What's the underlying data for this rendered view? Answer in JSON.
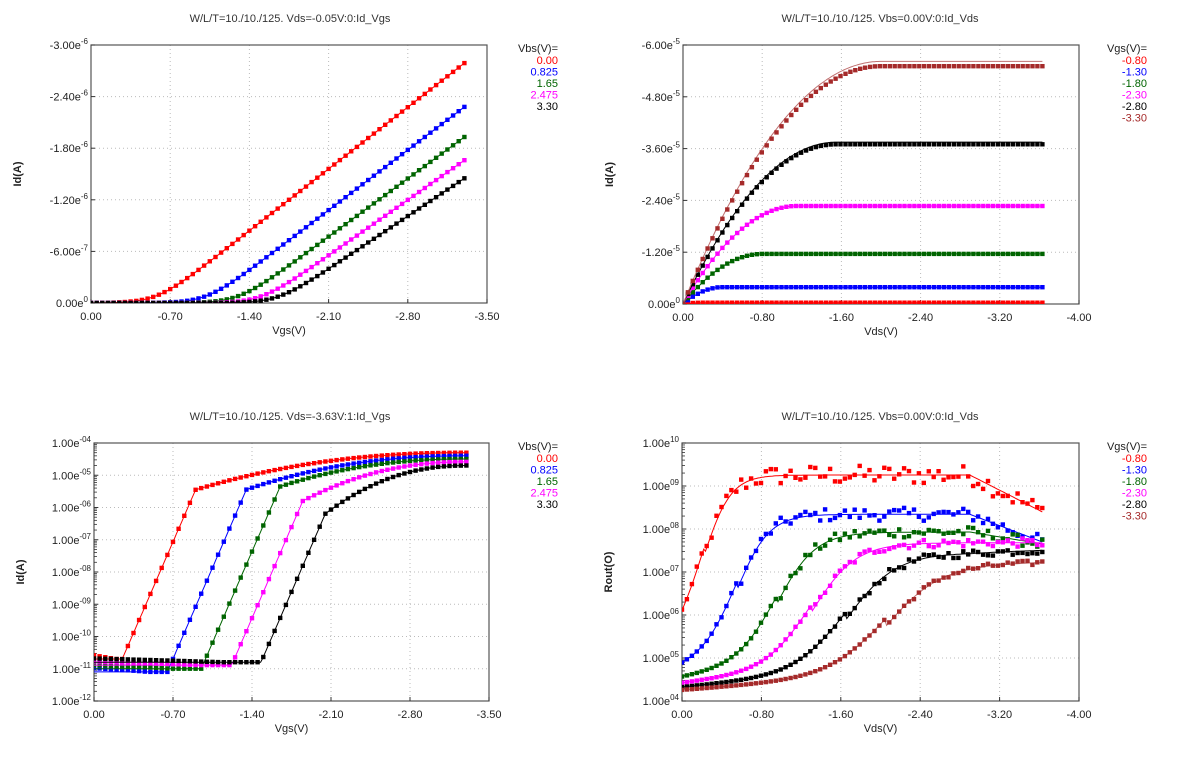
{
  "chart_data": [
    {
      "id": "tl",
      "type": "scatter",
      "title": "W/L/T=10./10./125.  Vds=-0.05V:0:Id_Vgs",
      "xlabel": "Vgs(V)",
      "ylabel": "Id(A)",
      "xlim": [
        0,
        -3.5
      ],
      "ylim": [
        0,
        -3e-06
      ],
      "yscale": "linear",
      "xticks": [
        0,
        -0.7,
        -1.4,
        -2.1,
        -2.8,
        -3.5
      ],
      "xtick_labels": [
        "0.00",
        "-0.70",
        "-1.40",
        "-2.10",
        "-2.80",
        "-3.50"
      ],
      "yticks": [
        0,
        -6e-07,
        -1.2e-06,
        -1.8e-06,
        -2.4e-06,
        -3e-06
      ],
      "ytick_labels": [
        [
          "0.00e",
          "0"
        ],
        [
          "-6.00e",
          "-7"
        ],
        [
          "-1.20e",
          "-6"
        ],
        [
          "-1.80e",
          "-6"
        ],
        [
          "-2.40e",
          "-6"
        ],
        [
          "-3.00e",
          "-6"
        ]
      ],
      "grid": true,
      "legend_title": "Vbs(V)=",
      "legend_position": "right",
      "model": "vgs_linear",
      "x_range": [
        0,
        -3.3
      ],
      "npts": 67,
      "series": [
        {
          "name": "0.00",
          "color": "#ff0000",
          "vth": -0.58,
          "end": -2.79e-06
        },
        {
          "name": "0.825",
          "color": "#0000ff",
          "vth": -1.02,
          "end": -2.28e-06
        },
        {
          "name": "1.65",
          "color": "#006400",
          "vth": -1.3,
          "end": -1.93e-06
        },
        {
          "name": "2.475",
          "color": "#ff00ff",
          "vth": -1.5,
          "end": -1.66e-06
        },
        {
          "name": "3.30",
          "color": "#000000",
          "vth": -1.65,
          "end": -1.45e-06
        }
      ]
    },
    {
      "id": "tr",
      "type": "scatter",
      "title": "W/L/T=10./10./125.  Vbs=0.00V:0:Id_Vds",
      "xlabel": "Vds(V)",
      "ylabel": "Id(A)",
      "xlim": [
        0,
        -4.0
      ],
      "ylim": [
        0,
        -6e-05
      ],
      "yscale": "linear",
      "xticks": [
        0,
        -0.8,
        -1.6,
        -2.4,
        -3.2,
        -4.0
      ],
      "xtick_labels": [
        "0.00",
        "-0.80",
        "-1.60",
        "-2.40",
        "-3.20",
        "-4.00"
      ],
      "yticks": [
        0,
        -1.2e-05,
        -2.4e-05,
        -3.6e-05,
        -4.8e-05,
        -6e-05
      ],
      "ytick_labels": [
        [
          "0.00e",
          "0"
        ],
        [
          "-1.20e",
          "-5"
        ],
        [
          "-2.40e",
          "-5"
        ],
        [
          "-3.60e",
          "-5"
        ],
        [
          "-4.80e",
          "-5"
        ],
        [
          "-6.00e",
          "-5"
        ]
      ],
      "grid": true,
      "legend_title": "Vgs(V)=",
      "legend_position": "right",
      "model": "vds_sat",
      "x_range": [
        0,
        -3.63
      ],
      "npts": 74,
      "series": [
        {
          "name": "-0.80",
          "color": "#ff0000",
          "line": "#ff0000",
          "isat": -3e-07,
          "vdsat": -0.2
        },
        {
          "name": "-1.30",
          "color": "#0000ff",
          "line": "#0000ff",
          "isat": -3.9e-06,
          "vdsat": -0.4
        },
        {
          "name": "-1.80",
          "color": "#006400",
          "line": "#006400",
          "isat": -1.16e-05,
          "vdsat": -0.8
        },
        {
          "name": "-2.30",
          "color": "#ff00ff",
          "line": "#ff00ff",
          "isat": -2.27e-05,
          "vdsat": -1.15
        },
        {
          "name": "-2.80",
          "color": "#000000",
          "line": "#000000",
          "isat": -3.7e-05,
          "vdsat": -1.55,
          "model_isat": -3.75e-05
        },
        {
          "name": "-3.30",
          "color": "#a52a2a",
          "line": "#c07070",
          "isat": -5.51e-05,
          "vdsat": -2.0,
          "model_isat": -5.62e-05
        }
      ]
    },
    {
      "id": "bl",
      "type": "scatter",
      "title": "W/L/T=10./10./125.  Vds=-3.63V:1:Id_Vgs",
      "xlabel": "Vgs(V)",
      "ylabel": "Id(A)",
      "xlim": [
        0,
        -3.5
      ],
      "ylim": [
        1e-12,
        0.0001
      ],
      "yscale": "log",
      "xticks": [
        0,
        -0.7,
        -1.4,
        -2.1,
        -2.8,
        -3.5
      ],
      "xtick_labels": [
        "0.00",
        "-0.70",
        "-1.40",
        "-2.10",
        "-2.80",
        "-3.50"
      ],
      "yticks": [
        1e-12,
        1e-11,
        1e-10,
        1e-09,
        1e-08,
        1e-07,
        1e-06,
        1e-05,
        0.0001
      ],
      "ytick_labels": [
        [
          "1.00e",
          "-12"
        ],
        [
          "1.00e",
          "-11"
        ],
        [
          "1.00e",
          "-10"
        ],
        [
          "1.00e",
          "-09"
        ],
        [
          "1.00e",
          "-08"
        ],
        [
          "1.00e",
          "-07"
        ],
        [
          "1.00e",
          "-06"
        ],
        [
          "1.00e",
          "-05"
        ],
        [
          "1.00e",
          "-04"
        ]
      ],
      "grid": true,
      "legend_title": "Vbs(V)=",
      "legend_position": "right",
      "model": "vgs_log",
      "x_range": [
        0,
        -3.3
      ],
      "npts": 67,
      "series": [
        {
          "name": "0.00",
          "color": "#ff0000",
          "von": -0.25,
          "slope": 9.5,
          "floor": 2e-11,
          "model_floor": 3.5e-12,
          "at_end": 5e-05,
          "knee": -0.9
        },
        {
          "name": "0.825",
          "color": "#0000ff",
          "von": -0.65,
          "slope": 9.5,
          "floor": 8e-12,
          "model_floor": 1.6e-12,
          "at_end": 4e-05,
          "knee": -1.35
        },
        {
          "name": "1.65",
          "color": "#006400",
          "von": -0.95,
          "slope": 9.5,
          "floor": 1e-11,
          "model_floor": 1.5e-12,
          "at_end": 3.2e-05,
          "knee": -1.65
        },
        {
          "name": "2.475",
          "color": "#ff00ff",
          "von": -1.22,
          "slope": 9.5,
          "floor": 1.3e-11,
          "model_floor": 1.5e-12,
          "at_end": 2.6e-05,
          "knee": -1.85
        },
        {
          "name": "3.30",
          "color": "#000000",
          "von": -1.48,
          "slope": 9.5,
          "floor": 1.6e-11,
          "model_floor": 1.7e-12,
          "at_end": 2e-05,
          "knee": -2.05
        }
      ]
    },
    {
      "id": "br",
      "type": "scatter",
      "title": "W/L/T=10./10./125.  Vbs=0.00V:0:Id_Vds",
      "xlabel": "Vds(V)",
      "ylabel": "Rout(O)",
      "xlim": [
        0,
        -4.0
      ],
      "ylim": [
        10000.0,
        10000000000.0
      ],
      "yscale": "log",
      "xticks": [
        0,
        -0.8,
        -1.6,
        -2.4,
        -3.2,
        -4.0
      ],
      "xtick_labels": [
        "0.00",
        "-0.80",
        "-1.60",
        "-2.40",
        "-3.20",
        "-4.00"
      ],
      "yticks": [
        10000.0,
        100000.0,
        1000000.0,
        10000000.0,
        100000000.0,
        1000000000.0,
        10000000000.0
      ],
      "ytick_labels": [
        [
          "1.00e",
          "04"
        ],
        [
          "1.00e",
          "05"
        ],
        [
          "1.00e",
          "06"
        ],
        [
          "1.00e",
          "07"
        ],
        [
          "1.00e",
          "08"
        ],
        [
          "1.00e",
          "09"
        ],
        [
          "1.00e",
          "10"
        ]
      ],
      "grid": true,
      "legend_title": "Vgs(V)=",
      "legend_position": "right",
      "model": "rout",
      "x_range": [
        0,
        -3.63
      ],
      "npts": 74,
      "series": [
        {
          "name": "-0.80",
          "color": "#ff0000",
          "line": "#ff0000",
          "r0": 300000.0,
          "rsat": 1800000000.0,
          "vk": -0.22,
          "tail": 250000000.0,
          "noise": 0.45
        },
        {
          "name": "-1.30",
          "color": "#0000ff",
          "line": "#0000ff",
          "r0": 60000.0,
          "rsat": 220000000.0,
          "vk": -0.55,
          "tail": 50000000.0,
          "noise": 0.3
        },
        {
          "name": "-1.80",
          "color": "#006400",
          "line": "#006400",
          "r0": 35000.0,
          "rsat": 85000000.0,
          "vk": -0.95,
          "tail": 45000000.0,
          "noise": 0.25
        },
        {
          "name": "-2.30",
          "color": "#ff00ff",
          "line": "#ff00ff",
          "r0": 26000.0,
          "rsat": 48000000.0,
          "vk": -1.3,
          "tail": 48000000.0,
          "noise": 0.2
        },
        {
          "name": "-2.80",
          "color": "#000000",
          "line": "#000000",
          "r0": 21000.0,
          "rsat": 28000000.0,
          "vk": -1.65,
          "tail": 32000000.0,
          "noise": 0.18
        },
        {
          "name": "-3.30",
          "color": "#a52a2a",
          "line": "#c07070",
          "r0": 18000.0,
          "rsat": 16000000.0,
          "vk": -2.05,
          "tail": 17000000.0,
          "noise": 0.12
        }
      ]
    }
  ]
}
